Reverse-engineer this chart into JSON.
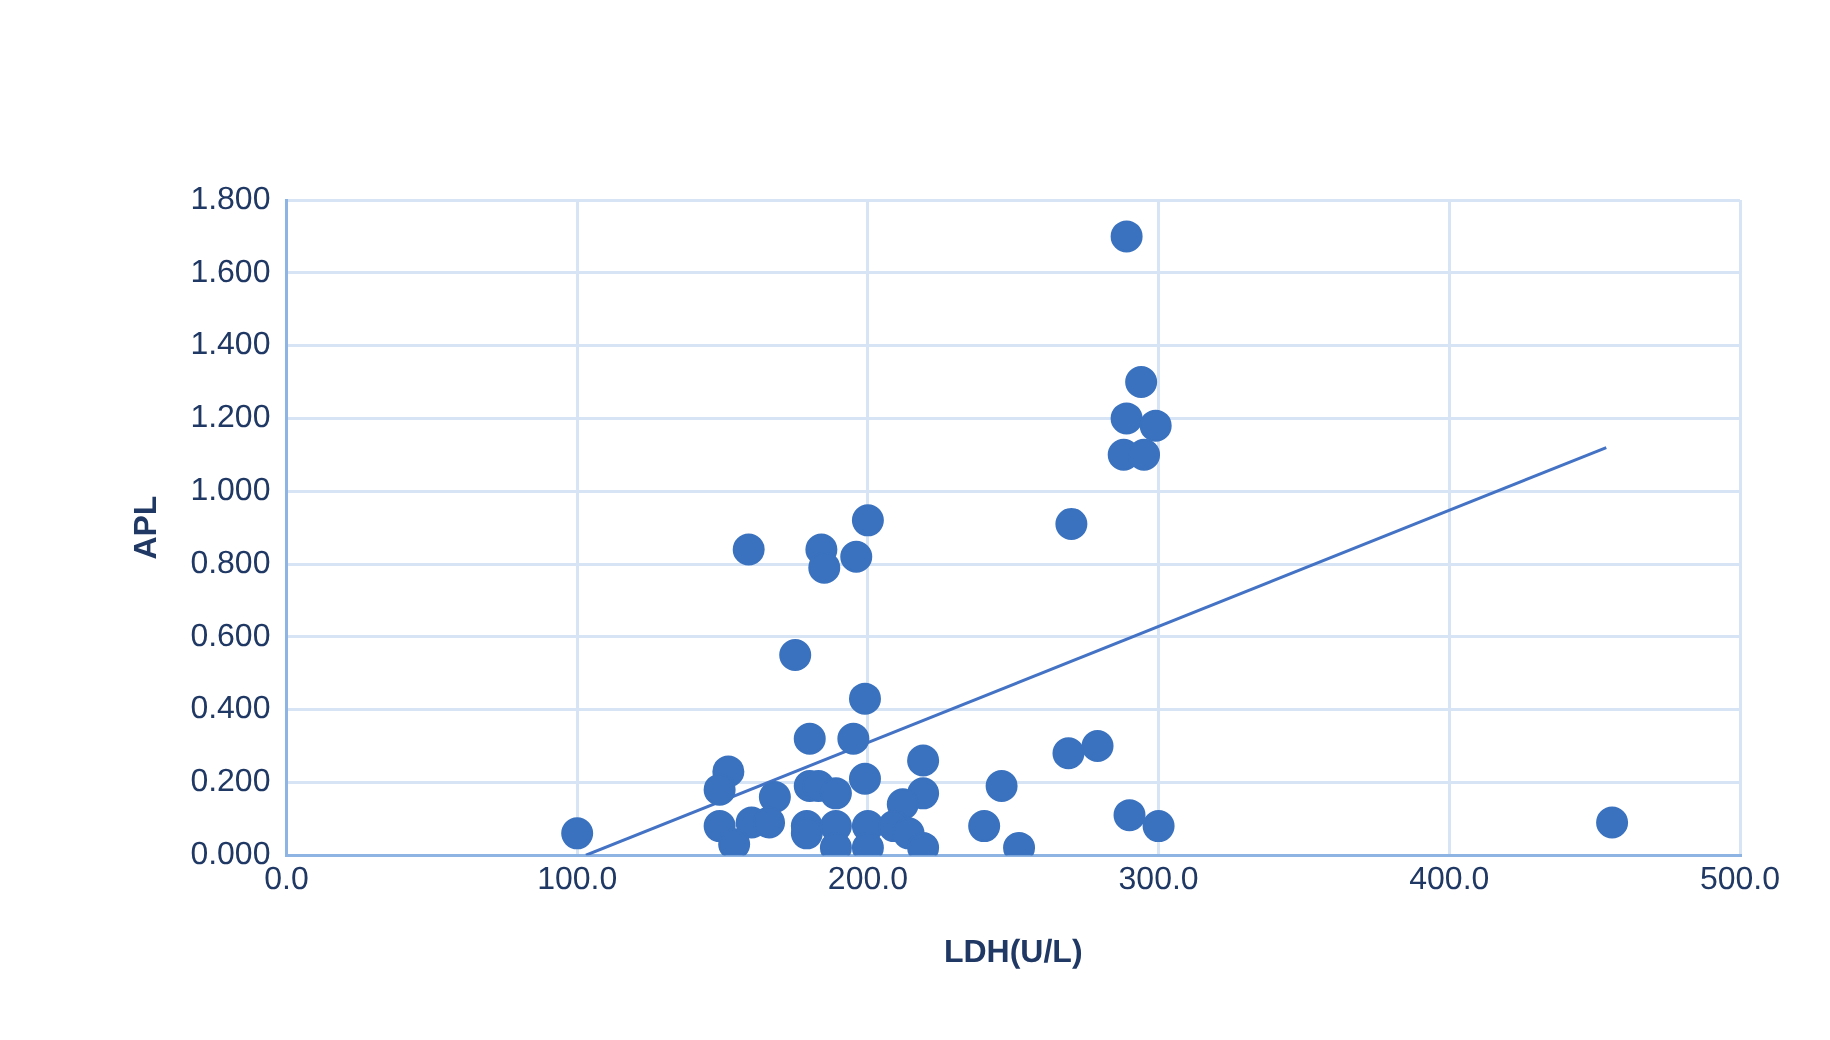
{
  "chart_data": {
    "type": "scatter",
    "xlabel": "LDH(U/L)",
    "ylabel": "APL",
    "marker": "circle",
    "grid": true,
    "legend": false,
    "xlim": [
      0,
      500
    ],
    "xticks": [
      {
        "value": 0,
        "label": "0.0"
      },
      {
        "value": 100,
        "label": "100.0"
      },
      {
        "value": 200,
        "label": "200.0"
      },
      {
        "value": 300,
        "label": "300.0"
      },
      {
        "value": 400,
        "label": "400.0"
      },
      {
        "value": 500,
        "label": "500.0"
      }
    ],
    "ylim": [
      0,
      1.8
    ],
    "yticks": [
      {
        "value": 0,
        "label": "0.000"
      },
      {
        "value": 0.2,
        "label": "0.200"
      },
      {
        "value": 0.4,
        "label": "0.400"
      },
      {
        "value": 0.6,
        "label": "0.600"
      },
      {
        "value": 0.8,
        "label": "0.800"
      },
      {
        "value": 1,
        "label": "1.000"
      },
      {
        "value": 1.2,
        "label": "1.200"
      },
      {
        "value": 1.4,
        "label": "1.400"
      },
      {
        "value": 1.6,
        "label": "1.600"
      },
      {
        "value": 1.8,
        "label": "1.800"
      }
    ],
    "series": [
      {
        "color": "#3a72bf",
        "x": [
          100,
          289,
          294,
          289,
          299,
          288,
          295,
          270,
          159,
          184,
          185,
          196,
          200,
          175,
          199,
          180,
          195,
          269,
          279,
          152,
          149,
          168,
          180,
          183,
          189,
          199,
          219,
          219,
          212,
          246,
          149,
          160,
          166,
          154,
          179,
          179,
          189,
          189,
          200,
          200,
          209,
          214,
          219,
          240,
          252,
          290,
          300,
          456
        ],
        "values": [
          0.06,
          1.7,
          1.3,
          1.2,
          1.18,
          1.1,
          1.1,
          0.91,
          0.84,
          0.84,
          0.79,
          0.82,
          0.92,
          0.55,
          0.43,
          0.32,
          0.32,
          0.28,
          0.3,
          0.23,
          0.18,
          0.16,
          0.19,
          0.19,
          0.17,
          0.21,
          0.26,
          0.17,
          0.14,
          0.19,
          0.08,
          0.09,
          0.09,
          0.03,
          0.08,
          0.06,
          0.08,
          0.02,
          0.08,
          0.02,
          0.08,
          0.06,
          0.02,
          0.08,
          0.02,
          0.11,
          0.08,
          0.09
        ]
      },
      {
        "type": "line",
        "color": "#4472c4",
        "marker": "none",
        "x": [
          103,
          454
        ],
        "values": [
          0,
          1.12
        ]
      }
    ]
  }
}
